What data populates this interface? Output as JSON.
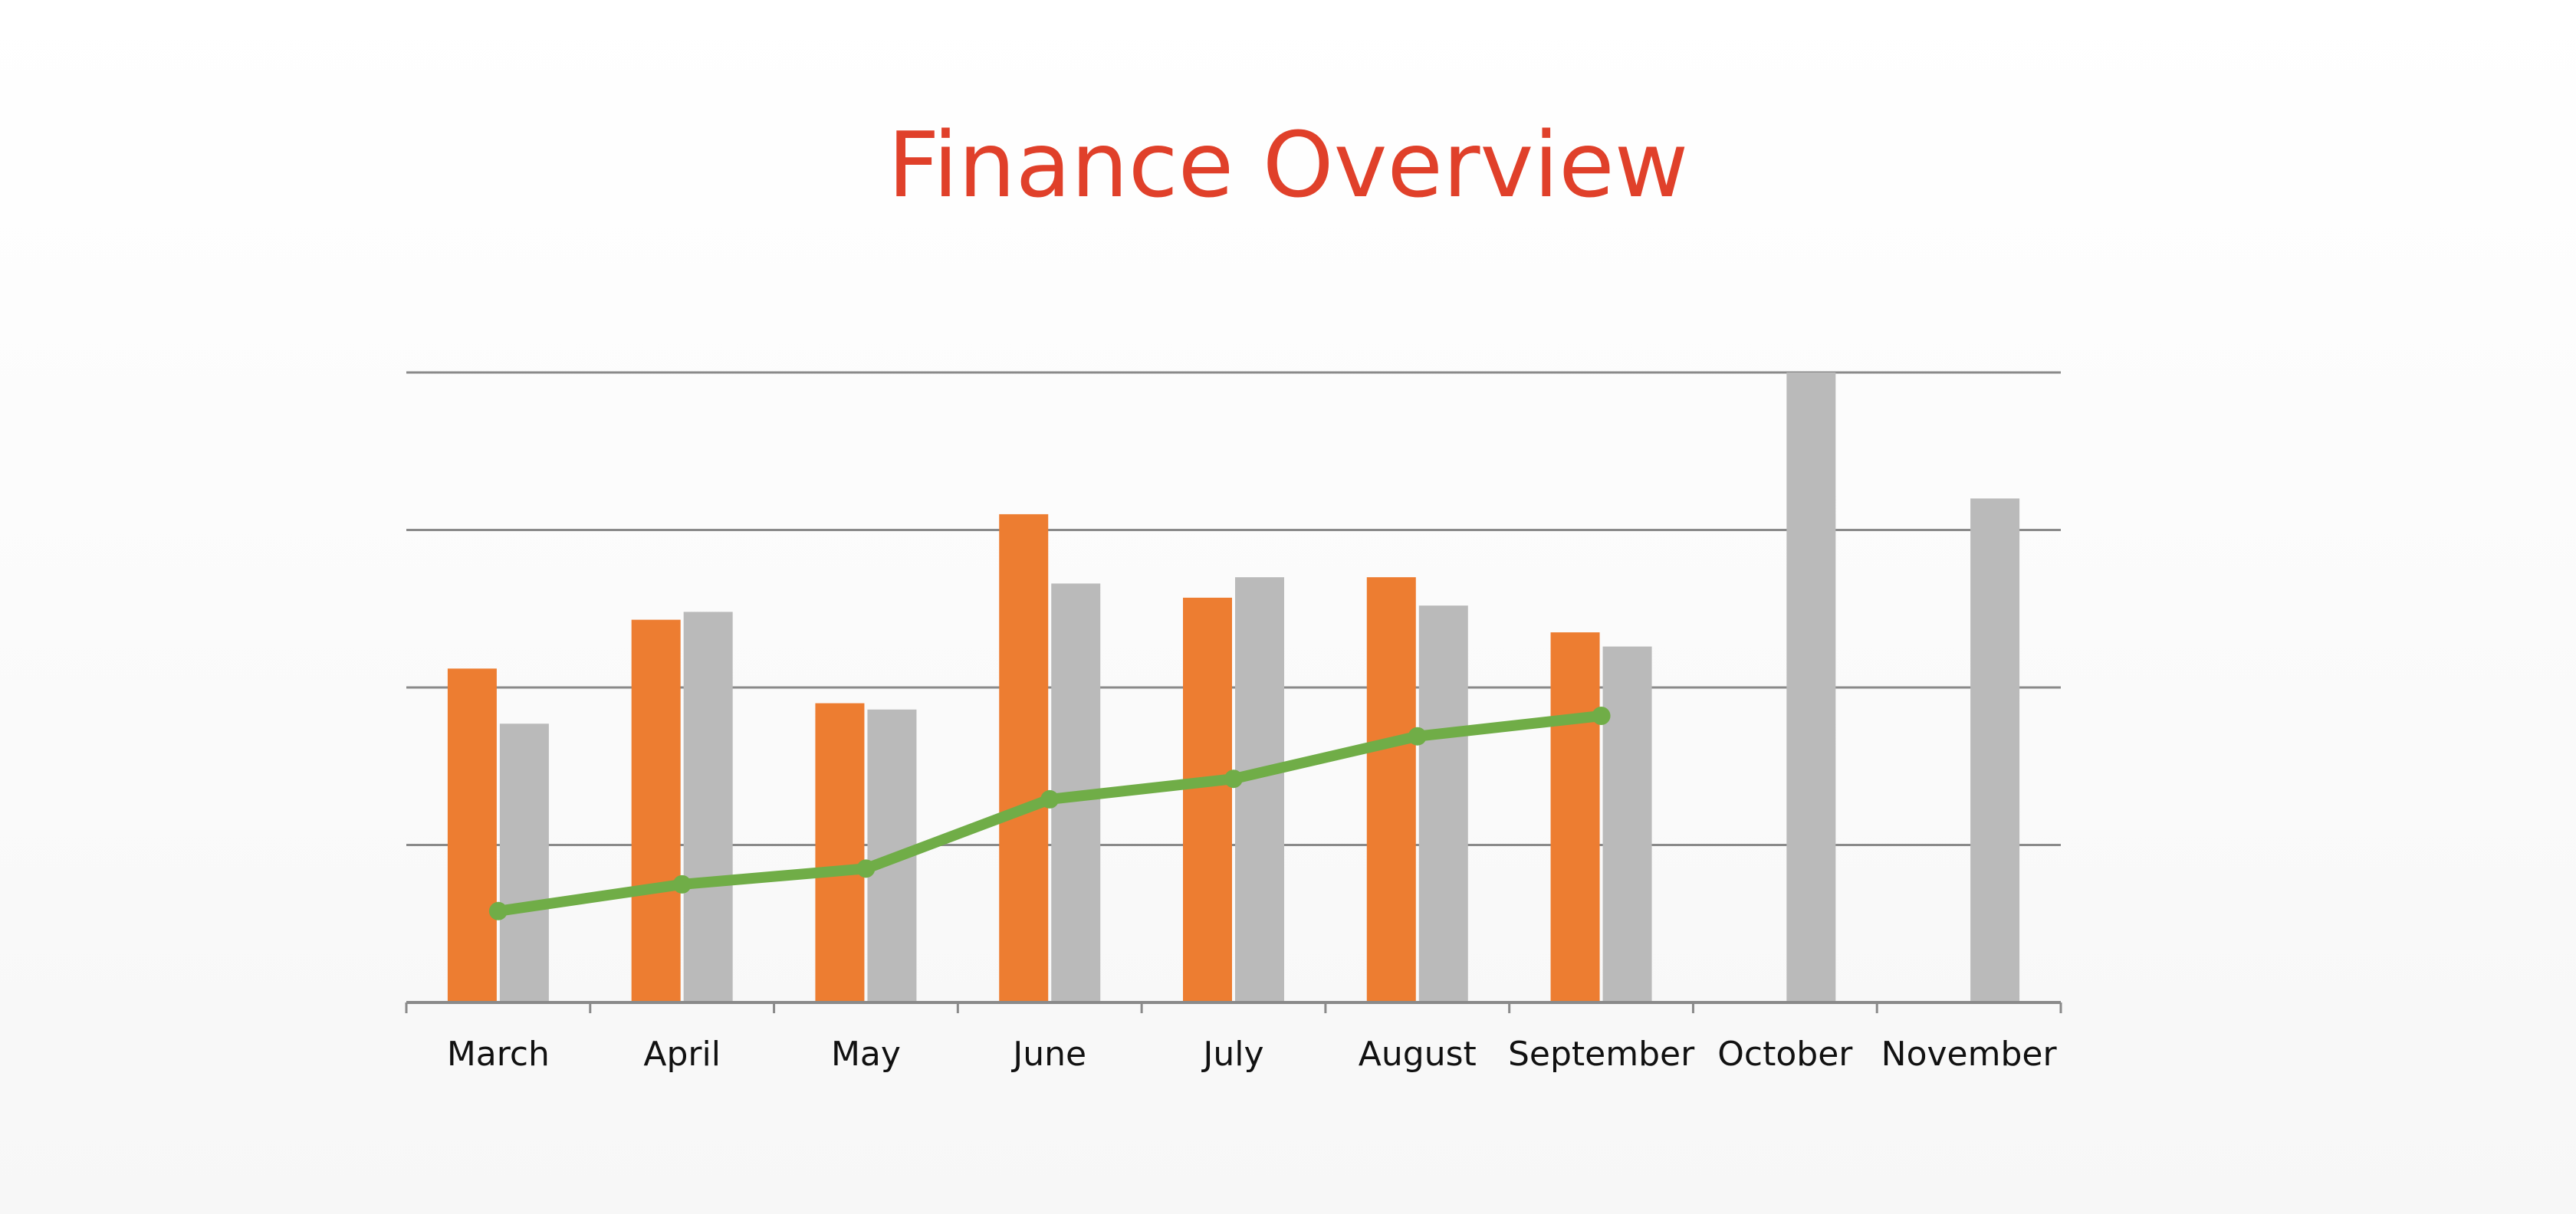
{
  "title": "Finance Overview",
  "chart_data": {
    "type": "bar",
    "title": "Finance Overview",
    "xlabel": "",
    "ylabel": "",
    "ylim": [
      0,
      4
    ],
    "grid": true,
    "y_tick_labels_shown": false,
    "legend": "none",
    "categories": [
      "March",
      "April",
      "May",
      "June",
      "July",
      "August",
      "September",
      "October",
      "November"
    ],
    "series": [
      {
        "type": "bar",
        "color": "#ed7d31",
        "values": [
          2.12,
          2.43,
          1.9,
          3.1,
          2.57,
          2.7,
          2.35,
          null,
          null
        ]
      },
      {
        "type": "bar",
        "color": "#bababa",
        "values": [
          1.77,
          2.48,
          1.86,
          2.66,
          2.7,
          2.52,
          2.26,
          4.0,
          3.2
        ]
      },
      {
        "type": "line",
        "color": "#70ad47",
        "values": [
          0.58,
          0.75,
          0.85,
          1.29,
          1.42,
          1.69,
          1.82,
          null,
          null
        ]
      }
    ]
  }
}
